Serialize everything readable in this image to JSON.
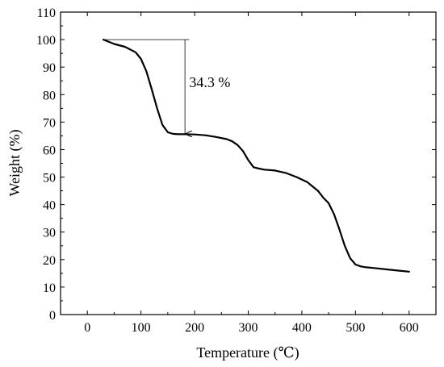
{
  "chart_data": {
    "type": "line",
    "xlabel": "Temperature (℃)",
    "ylabel": "Weight (%)",
    "xlim": [
      -50,
      650
    ],
    "ylim": [
      0,
      110
    ],
    "xticks": [
      0,
      100,
      200,
      300,
      400,
      500,
      600
    ],
    "yticks": [
      0,
      10,
      20,
      30,
      40,
      50,
      60,
      70,
      80,
      90,
      100,
      110
    ],
    "grid": false,
    "series": [
      {
        "x": [
          30,
          50,
          70,
          90,
          100,
          110,
          120,
          130,
          140,
          150,
          160,
          170,
          180,
          200,
          220,
          240,
          260,
          270,
          280,
          290,
          300,
          310,
          320,
          330,
          350,
          370,
          390,
          410,
          430,
          440,
          450,
          460,
          470,
          480,
          490,
          500,
          510,
          520,
          540,
          560,
          580,
          600
        ],
        "values": [
          100,
          98.4,
          97.4,
          95.4,
          93.0,
          88.5,
          82.0,
          75.0,
          69.0,
          66.3,
          65.7,
          65.6,
          65.6,
          65.5,
          65.2,
          64.6,
          63.8,
          63.0,
          61.7,
          59.5,
          56.2,
          53.6,
          53.1,
          52.7,
          52.4,
          51.5,
          50.0,
          48.2,
          45.0,
          42.5,
          40.5,
          36.5,
          31.0,
          25.0,
          20.5,
          18.2,
          17.5,
          17.2,
          16.8,
          16.4,
          16.0,
          15.6
        ],
        "color": "#000000"
      }
    ],
    "annotations": [
      {
        "text": "34.3 %",
        "x": 190,
        "y": 85,
        "arrow_from": {
          "x": 182,
          "y": 100
        },
        "arrow_to": {
          "x": 182,
          "y": 65.7
        },
        "ref_line": {
          "x0": 30,
          "x1": 190,
          "y": 100
        }
      }
    ]
  }
}
